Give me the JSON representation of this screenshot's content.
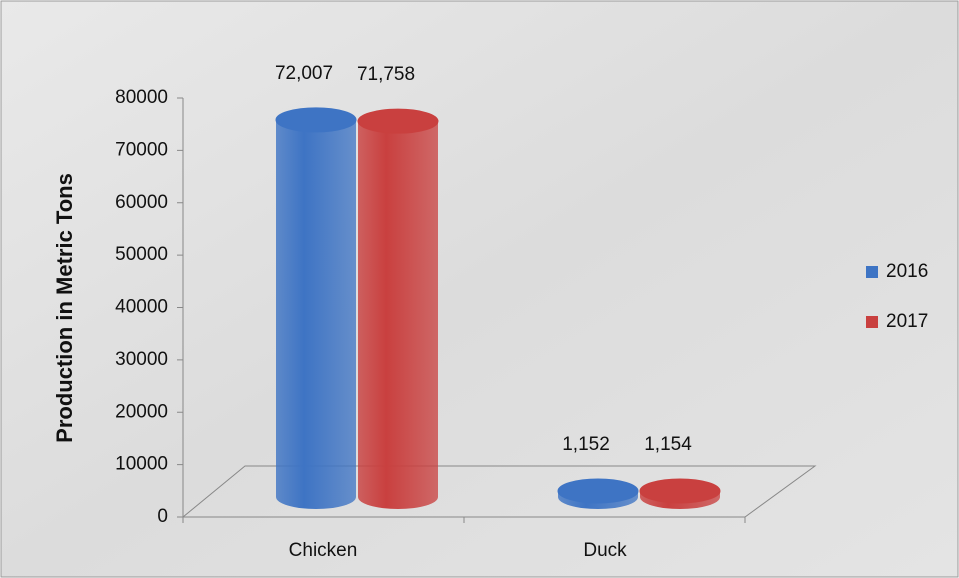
{
  "chart_data": {
    "type": "bar",
    "categories": [
      "Chicken",
      "Duck"
    ],
    "series": [
      {
        "name": "2016",
        "color": "#3e74c4",
        "values": [
          72007,
          1152
        ],
        "value_labels": [
          "72,007",
          "1,152"
        ]
      },
      {
        "name": "2017",
        "color": "#c9403f",
        "values": [
          71758,
          1154
        ],
        "value_labels": [
          "71,758",
          "1,154"
        ]
      }
    ],
    "y_label": "Production in Metric Tons",
    "ylim": [
      0,
      80000
    ],
    "yticks": [
      0,
      10000,
      20000,
      30000,
      40000,
      50000,
      60000,
      70000,
      80000
    ],
    "legend": "right"
  }
}
